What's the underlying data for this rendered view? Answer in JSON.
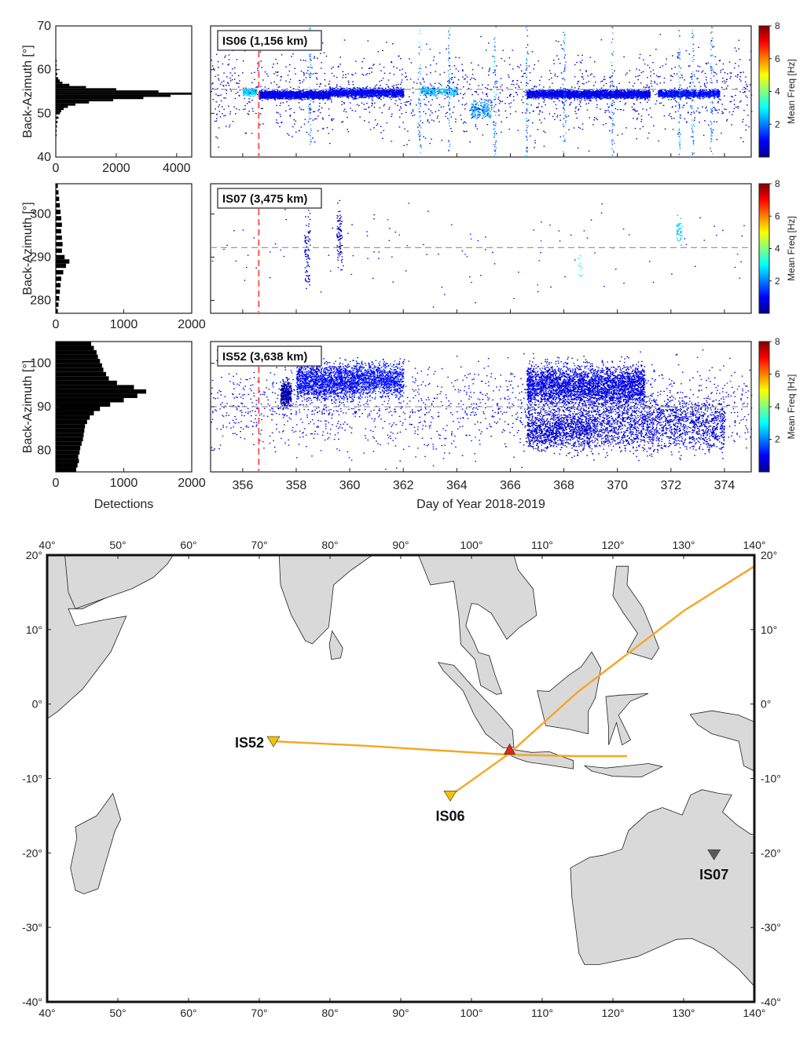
{
  "chart_data": [
    {
      "type": "histogram",
      "panel": "IS06 histogram",
      "orientation": "horizontal",
      "ylabel": "Back-Azimuth [°]",
      "ylim": [
        40,
        70
      ],
      "yticks": [
        40,
        50,
        60,
        70
      ],
      "xlim": [
        0,
        4500
      ],
      "xticks": [
        0,
        2000,
        4000
      ],
      "peak_azimuth": 54.7,
      "bins": [
        [
          45.0,
          10
        ],
        [
          46.0,
          20
        ],
        [
          47.0,
          40
        ],
        [
          48.0,
          60
        ],
        [
          49.0,
          90
        ],
        [
          50.0,
          140
        ],
        [
          50.5,
          180
        ],
        [
          51.0,
          260
        ],
        [
          51.5,
          400
        ],
        [
          52.0,
          650
        ],
        [
          52.5,
          1100
        ],
        [
          53.0,
          1900
        ],
        [
          53.5,
          2900
        ],
        [
          54.0,
          3800
        ],
        [
          54.5,
          4500
        ],
        [
          55.0,
          3400
        ],
        [
          55.5,
          2000
        ],
        [
          56.0,
          1000
        ],
        [
          56.5,
          450
        ],
        [
          57.0,
          220
        ],
        [
          57.5,
          130
        ],
        [
          58.0,
          80
        ],
        [
          59.0,
          50
        ],
        [
          60.0,
          30
        ],
        [
          61.0,
          20
        ],
        [
          62.0,
          10
        ]
      ]
    },
    {
      "type": "scatter",
      "panel": "IS06 detections",
      "label": "IS06 (1,156 km)",
      "ylim": [
        40,
        70
      ],
      "xlim": [
        354.8,
        375
      ],
      "expected_azimuth": 55.5,
      "event_day": 356.6,
      "colorbar": {
        "label": "Mean Freq [Hz]",
        "ticks": [
          2,
          4,
          6,
          8
        ],
        "min": 0,
        "max": 8
      },
      "clusters": [
        {
          "x_range": [
            356.0,
            356.5
          ],
          "y_center": 55.0,
          "y_spread": 1.2,
          "freq": 2.6,
          "count": 220
        },
        {
          "x_range": [
            356.6,
            359.2
          ],
          "y_center": 54.3,
          "y_spread": 1.3,
          "freq": 0.9,
          "count": 1900
        },
        {
          "x_range": [
            359.2,
            362.0
          ],
          "y_center": 54.8,
          "y_spread": 1.5,
          "freq": 1.0,
          "count": 1500
        },
        {
          "x_range": [
            362.6,
            364.0
          ],
          "y_center": 55.2,
          "y_spread": 1.5,
          "freq": 2.4,
          "count": 250
        },
        {
          "x_range": [
            364.5,
            365.3
          ],
          "y_center": 51.0,
          "y_spread": 3.0,
          "freq": 2.2,
          "count": 180
        },
        {
          "x_range": [
            366.6,
            371.2
          ],
          "y_center": 54.5,
          "y_spread": 1.4,
          "freq": 0.9,
          "count": 2800
        },
        {
          "x_range": [
            371.5,
            373.8
          ],
          "y_center": 54.6,
          "y_spread": 1.3,
          "freq": 1.1,
          "count": 1100
        },
        {
          "x_range": [
            354.8,
            375.0
          ],
          "y_center": 55.0,
          "y_spread": 15.0,
          "freq": 0.6,
          "count": 1500
        }
      ],
      "vertical_streaks": [
        358.5,
        362.6,
        363.7,
        365.4,
        366.6,
        368.0,
        369.8,
        372.3,
        372.8,
        373.5
      ]
    },
    {
      "type": "histogram",
      "panel": "IS07 histogram",
      "orientation": "horizontal",
      "ylabel": "Back-Azimuth [°]",
      "ylim": [
        277,
        307
      ],
      "yticks": [
        280,
        290,
        300
      ],
      "xlim": [
        0,
        2000
      ],
      "xticks": [
        0,
        1000,
        2000
      ],
      "bins": [
        [
          277.5,
          30
        ],
        [
          279.0,
          40
        ],
        [
          280.5,
          50
        ],
        [
          282.0,
          60
        ],
        [
          283.5,
          70
        ],
        [
          285.0,
          80
        ],
        [
          286.5,
          110
        ],
        [
          288.0,
          150
        ],
        [
          289.0,
          200
        ],
        [
          290.0,
          130
        ],
        [
          291.5,
          90
        ],
        [
          293.0,
          100
        ],
        [
          294.5,
          90
        ],
        [
          296.0,
          80
        ],
        [
          297.5,
          90
        ],
        [
          299.0,
          80
        ],
        [
          300.5,
          70
        ],
        [
          302.0,
          60
        ],
        [
          303.5,
          50
        ],
        [
          305.0,
          40
        ],
        [
          306.5,
          30
        ]
      ]
    },
    {
      "type": "scatter",
      "panel": "IS07 detections",
      "label": "IS07 (3,475 km)",
      "ylim": [
        277,
        307
      ],
      "xlim": [
        354.8,
        375
      ],
      "expected_azimuth": 292.2,
      "event_day": 356.6,
      "colorbar": {
        "label": "Mean Freq [Hz]",
        "ticks": [
          2,
          4,
          6,
          8
        ],
        "min": 0,
        "max": 8
      },
      "clusters": [
        {
          "x_range": [
            358.3,
            358.5
          ],
          "y_center": 292.0,
          "y_spread": 13.0,
          "freq": 0.6,
          "count": 80
        },
        {
          "x_range": [
            359.5,
            359.7
          ],
          "y_center": 295.0,
          "y_spread": 11.0,
          "freq": 0.5,
          "count": 90
        },
        {
          "x_range": [
            372.2,
            372.4
          ],
          "y_center": 296.0,
          "y_spread": 5.0,
          "freq": 2.6,
          "count": 45
        },
        {
          "x_range": [
            368.5,
            368.7
          ],
          "y_center": 288.0,
          "y_spread": 5.0,
          "freq": 3.5,
          "count": 15
        },
        {
          "x_range": [
            354.8,
            375.0
          ],
          "y_center": 292.0,
          "y_spread": 15.0,
          "freq": 1.0,
          "count": 120
        }
      ]
    },
    {
      "type": "histogram",
      "panel": "IS52 histogram",
      "orientation": "horizontal",
      "ylabel": "Back-Azimuth [°]",
      "ylim": [
        75,
        105
      ],
      "yticks": [
        80,
        90,
        100
      ],
      "xlim": [
        0,
        2000
      ],
      "xticks": [
        0,
        1000,
        2000
      ],
      "xlabel": "Detections",
      "bins": [
        [
          75.5,
          300
        ],
        [
          76.5,
          320
        ],
        [
          77.5,
          340
        ],
        [
          78.5,
          330
        ],
        [
          79.5,
          350
        ],
        [
          80.5,
          360
        ],
        [
          81.5,
          380
        ],
        [
          82.5,
          400
        ],
        [
          83.5,
          410
        ],
        [
          84.5,
          420
        ],
        [
          85.5,
          430
        ],
        [
          86.5,
          460
        ],
        [
          87.5,
          500
        ],
        [
          88.5,
          560
        ],
        [
          89.5,
          650
        ],
        [
          90.5,
          800
        ],
        [
          91.5,
          1000
        ],
        [
          92.5,
          1200
        ],
        [
          93.5,
          1330
        ],
        [
          94.5,
          1150
        ],
        [
          95.5,
          900
        ],
        [
          96.5,
          780
        ],
        [
          97.5,
          740
        ],
        [
          98.5,
          700
        ],
        [
          99.5,
          680
        ],
        [
          100.5,
          650
        ],
        [
          101.5,
          620
        ],
        [
          102.5,
          600
        ],
        [
          103.5,
          560
        ],
        [
          104.5,
          520
        ]
      ]
    },
    {
      "type": "scatter",
      "panel": "IS52 detections",
      "label": "IS52 (3,638 km)",
      "ylim": [
        75,
        105
      ],
      "xlim": [
        354.8,
        375
      ],
      "expected_azimuth": 90.0,
      "event_day": 356.6,
      "xlabel": "Day of Year 2018-2019",
      "xticks": [
        356,
        358,
        360,
        362,
        364,
        366,
        368,
        370,
        372,
        374
      ],
      "colorbar": {
        "label": "Mean Freq [Hz]",
        "ticks": [
          2,
          4,
          6,
          8
        ],
        "min": 0,
        "max": 8
      },
      "clusters": [
        {
          "x_range": [
            357.4,
            357.8
          ],
          "y_center": 93.0,
          "y_spread": 4.5,
          "freq": 0.3,
          "count": 350
        },
        {
          "x_range": [
            358.0,
            360.2
          ],
          "y_center": 96.0,
          "y_spread": 6.0,
          "freq": 1.0,
          "count": 1500
        },
        {
          "x_range": [
            360.2,
            362.0
          ],
          "y_center": 96.5,
          "y_spread": 5.5,
          "freq": 1.1,
          "count": 1000
        },
        {
          "x_range": [
            366.6,
            371.0
          ],
          "y_center": 95.0,
          "y_spread": 7.0,
          "freq": 0.8,
          "count": 3200
        },
        {
          "x_range": [
            366.6,
            369.0
          ],
          "y_center": 85.0,
          "y_spread": 7.0,
          "freq": 0.6,
          "count": 1200
        },
        {
          "x_range": [
            369.0,
            374.0
          ],
          "y_center": 86.0,
          "y_spread": 9.0,
          "freq": 0.7,
          "count": 1800
        },
        {
          "x_range": [
            354.8,
            375.0
          ],
          "y_center": 90.0,
          "y_spread": 15.0,
          "freq": 0.9,
          "count": 1700
        }
      ]
    },
    {
      "type": "map",
      "panel": "station map",
      "lon_range": [
        40,
        140
      ],
      "lat_range": [
        -40,
        20
      ],
      "lon_ticks": [
        40,
        50,
        60,
        70,
        80,
        90,
        100,
        110,
        120,
        130,
        140
      ],
      "lat_ticks": [
        -40,
        -30,
        -20,
        -10,
        0,
        10,
        20
      ],
      "stations": [
        {
          "name": "IS52",
          "lon": 72.0,
          "lat": -5.0,
          "color": "#f2c200",
          "label_side": "left"
        },
        {
          "name": "IS06",
          "lon": 97.0,
          "lat": -12.3,
          "color": "#f2c200",
          "label_side": "below"
        },
        {
          "name": "IS07",
          "lon": 134.3,
          "lat": -20.2,
          "color": "#5a5a5a",
          "label_side": "below"
        }
      ],
      "event": {
        "lon": 105.4,
        "lat": -6.1,
        "color": "#e0251b"
      },
      "back_azimuth_paths": [
        {
          "from": "IS52",
          "points": [
            [
              72.0,
              -5.0
            ],
            [
              85.0,
              -5.6
            ],
            [
              95.0,
              -6.2
            ],
            [
              105.4,
              -6.8
            ],
            [
              115.0,
              -7.0
            ],
            [
              122.0,
              -7.0
            ]
          ]
        },
        {
          "from": "IS06",
          "points": [
            [
              97.0,
              -12.3
            ],
            [
              105.4,
              -6.6
            ],
            [
              115.0,
              1.6
            ],
            [
              130.0,
              12.5
            ],
            [
              140.0,
              18.5
            ]
          ]
        }
      ],
      "path_color": "#f5a623"
    }
  ]
}
